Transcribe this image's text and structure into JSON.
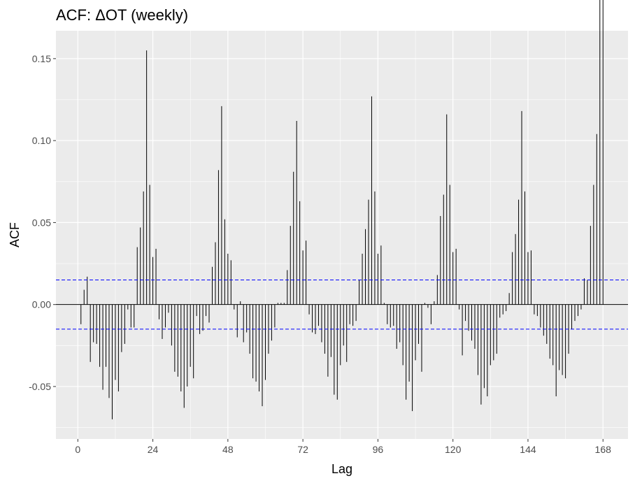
{
  "chart_data": {
    "type": "bar",
    "title": "ACF: ΔOT (weekly)",
    "xlabel": "Lag",
    "ylabel": "ACF",
    "xlim": [
      -7,
      176
    ],
    "ylim": [
      -0.082,
      0.167
    ],
    "x_ticks": [
      0,
      24,
      48,
      72,
      96,
      120,
      144,
      168
    ],
    "x_tick_labels": [
      "0",
      "24",
      "48",
      "72",
      "96",
      "120",
      "144",
      "168"
    ],
    "y_ticks": [
      -0.05,
      0.0,
      0.05,
      0.1,
      0.15
    ],
    "y_tick_labels": [
      "-0.05",
      "0.00",
      "0.05",
      "0.10",
      "0.15"
    ],
    "confidence_band": [
      0.015,
      -0.015
    ],
    "colors": {
      "panel": "#ebebeb",
      "grid": "#ffffff",
      "bar": "#000000",
      "band": "#0000ff",
      "zero_line": "#000000"
    },
    "lags": [
      1,
      2,
      3,
      4,
      5,
      6,
      7,
      8,
      9,
      10,
      11,
      12,
      13,
      14,
      15,
      16,
      17,
      18,
      19,
      20,
      21,
      22,
      23,
      24,
      25,
      26,
      27,
      28,
      29,
      30,
      31,
      32,
      33,
      34,
      35,
      36,
      37,
      38,
      39,
      40,
      41,
      42,
      43,
      44,
      45,
      46,
      47,
      48,
      49,
      50,
      51,
      52,
      53,
      54,
      55,
      56,
      57,
      58,
      59,
      60,
      61,
      62,
      63,
      64,
      65,
      66,
      67,
      68,
      69,
      70,
      71,
      72,
      73,
      74,
      75,
      76,
      77,
      78,
      79,
      80,
      81,
      82,
      83,
      84,
      85,
      86,
      87,
      88,
      89,
      90,
      91,
      92,
      93,
      94,
      95,
      96,
      97,
      98,
      99,
      100,
      101,
      102,
      103,
      104,
      105,
      106,
      107,
      108,
      109,
      110,
      111,
      112,
      113,
      114,
      115,
      116,
      117,
      118,
      119,
      120,
      121,
      122,
      123,
      124,
      125,
      126,
      127,
      128,
      129,
      130,
      131,
      132,
      133,
      134,
      135,
      136,
      137,
      138,
      139,
      140,
      141,
      142,
      143,
      144,
      145,
      146,
      147,
      148,
      149,
      150,
      151,
      152,
      153,
      154,
      155,
      156,
      157,
      158,
      159,
      160,
      161,
      162,
      163,
      164,
      165,
      166,
      167,
      168
    ],
    "values": [
      -0.012,
      0.009,
      0.017,
      -0.035,
      -0.023,
      -0.024,
      -0.038,
      -0.052,
      -0.038,
      -0.057,
      -0.07,
      -0.046,
      -0.053,
      -0.029,
      -0.024,
      -0.003,
      -0.014,
      -0.014,
      0.035,
      0.047,
      0.069,
      0.155,
      0.073,
      0.029,
      0.034,
      -0.009,
      -0.021,
      -0.014,
      -0.005,
      -0.025,
      -0.041,
      -0.044,
      -0.053,
      -0.063,
      -0.05,
      -0.038,
      -0.045,
      -0.007,
      -0.018,
      -0.016,
      -0.007,
      -0.011,
      0.023,
      0.038,
      0.082,
      0.121,
      0.052,
      0.031,
      0.027,
      -0.003,
      -0.02,
      0.002,
      -0.023,
      -0.017,
      -0.03,
      -0.045,
      -0.047,
      -0.053,
      -0.062,
      -0.046,
      -0.03,
      -0.022,
      -0.014,
      0.001,
      0.001,
      0.001,
      0.021,
      0.048,
      0.081,
      0.112,
      0.063,
      0.033,
      0.039,
      -0.006,
      -0.017,
      -0.018,
      -0.013,
      -0.023,
      -0.03,
      -0.044,
      -0.032,
      -0.055,
      -0.058,
      -0.037,
      -0.025,
      -0.035,
      -0.012,
      -0.013,
      -0.01,
      0.015,
      0.031,
      0.046,
      0.064,
      0.127,
      0.069,
      0.031,
      0.036,
      0.001,
      -0.012,
      -0.014,
      -0.013,
      -0.027,
      -0.023,
      -0.037,
      -0.058,
      -0.047,
      -0.065,
      -0.034,
      -0.024,
      -0.041,
      0.001,
      -0.002,
      -0.012,
      0.002,
      0.018,
      0.054,
      0.067,
      0.116,
      0.073,
      0.032,
      0.034,
      -0.003,
      -0.031,
      -0.01,
      -0.016,
      -0.022,
      -0.027,
      -0.043,
      -0.061,
      -0.051,
      -0.056,
      -0.037,
      -0.034,
      -0.03,
      -0.008,
      -0.006,
      -0.004,
      0.007,
      0.032,
      0.043,
      0.064,
      0.118,
      0.069,
      0.032,
      0.033,
      -0.006,
      -0.007,
      -0.014,
      -0.019,
      -0.024,
      -0.033,
      -0.037,
      -0.056,
      -0.04,
      -0.043,
      -0.045,
      -0.03,
      -0.015,
      -0.01,
      -0.007,
      -0.003,
      0.016,
      0.015,
      0.048,
      0.073,
      0.104
    ]
  }
}
